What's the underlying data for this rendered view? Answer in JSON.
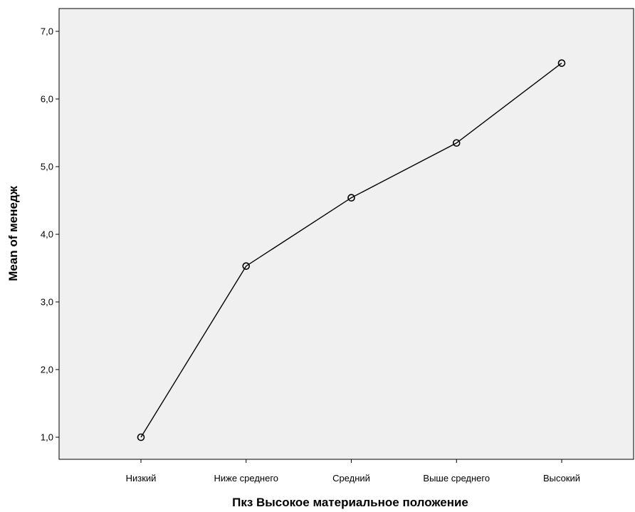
{
  "chart_data": {
    "type": "line",
    "categories": [
      "Низкий",
      "Ниже среднего",
      "Средний",
      "Выше среднего",
      "Высокий"
    ],
    "series": [
      {
        "values": [
          1.0,
          3.53,
          4.54,
          5.35,
          6.53
        ]
      }
    ],
    "xlabel": "Пкз Высокое материальное положение",
    "ylabel": "Mean of менедж",
    "ylim": [
      0.7,
      7.35
    ],
    "yticks": [
      1.0,
      2.0,
      3.0,
      4.0,
      5.0,
      6.0,
      7.0
    ],
    "ytick_labels": [
      "1,0",
      "2,0",
      "3,0",
      "4,0",
      "5,0",
      "6,0",
      "7,0"
    ],
    "plot_background": "#f0f0f0",
    "line_color": "#000000",
    "marker": "open-circle",
    "grid": false,
    "legend": "none"
  }
}
